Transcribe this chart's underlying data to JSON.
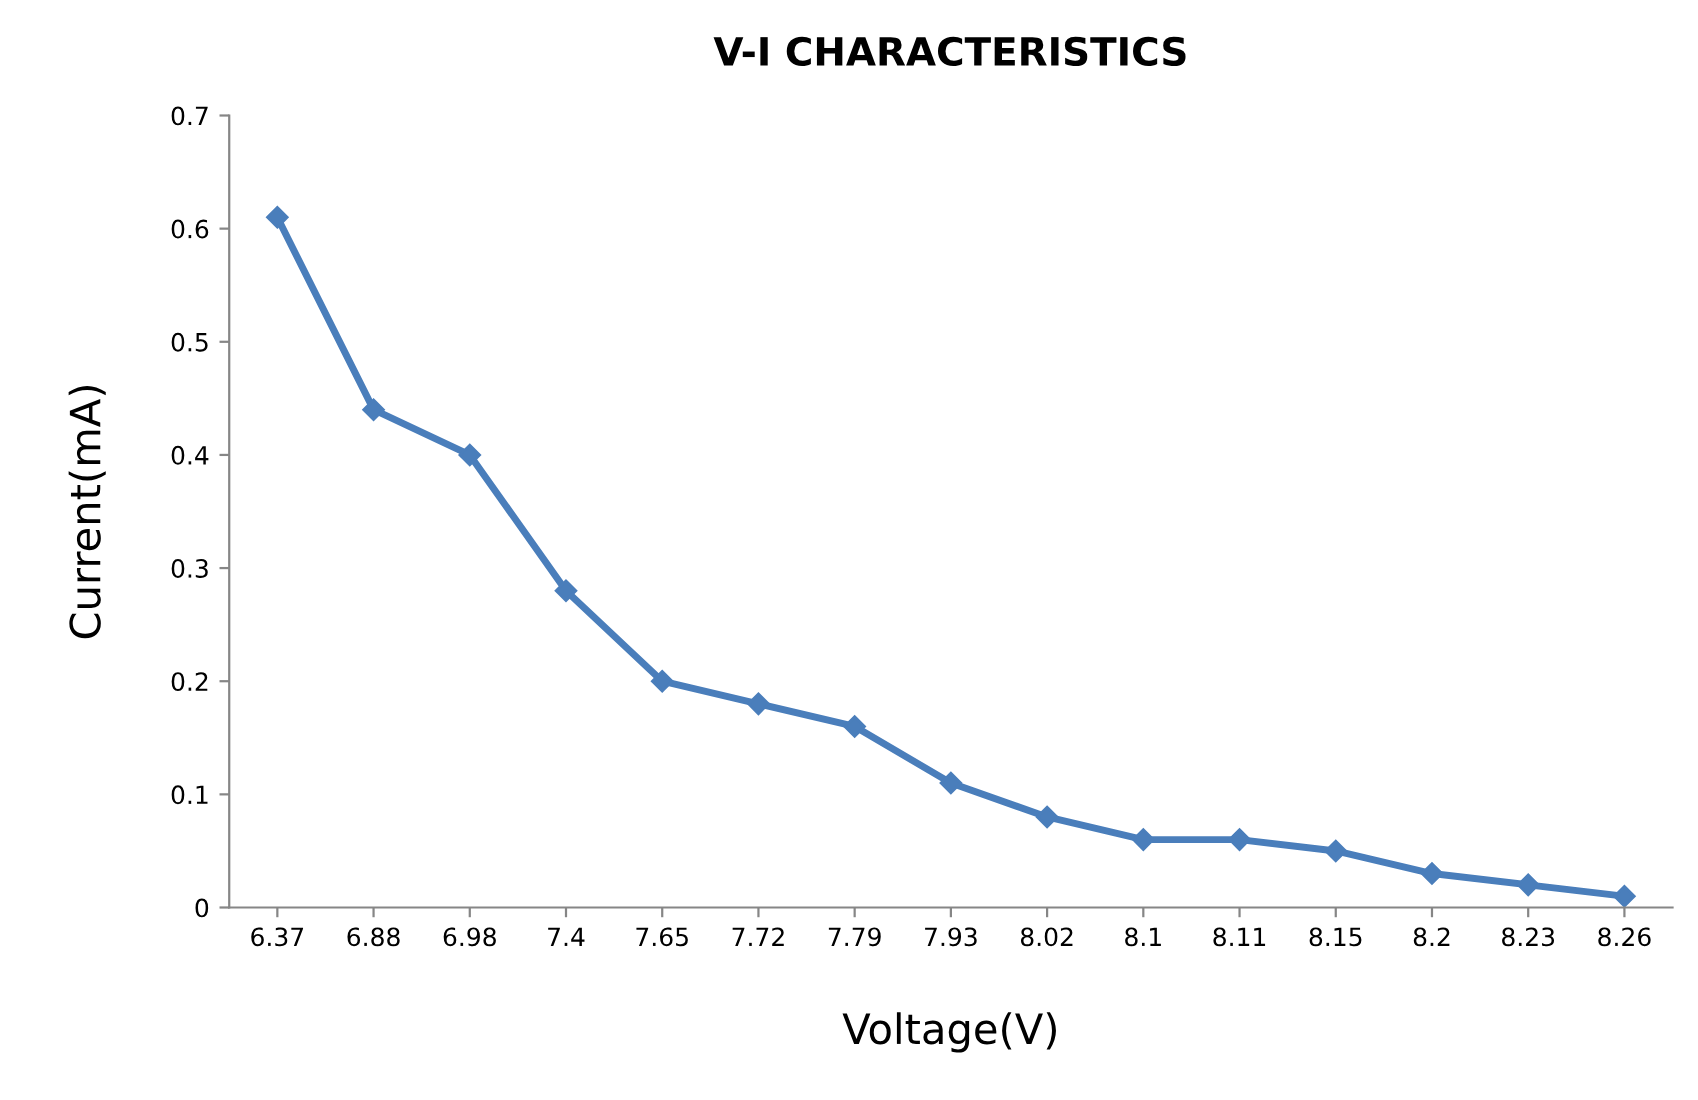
{
  "chart_data": {
    "type": "line",
    "title": "V-I CHARACTERISTICS",
    "xlabel": "Voltage(V)",
    "ylabel": "Current(mA)",
    "categories": [
      "6.37",
      "6.88",
      "6.98",
      "7.4",
      "7.65",
      "7.72",
      "7.79",
      "7.93",
      "8.02",
      "8.1",
      "8.11",
      "8.15",
      "8.2",
      "8.23",
      "8.26"
    ],
    "series": [
      {
        "color": "#4a7ebb",
        "values": [
          0.61,
          0.44,
          0.4,
          0.28,
          0.2,
          0.18,
          0.16,
          0.11,
          0.08,
          0.06,
          0.06,
          0.05,
          0.03,
          0.02,
          0.01
        ]
      }
    ],
    "ylim": [
      0,
      0.7
    ],
    "yticks": [
      0,
      0.1,
      0.2,
      0.3,
      0.4,
      0.5,
      0.6,
      0.7
    ],
    "marker": "diamond",
    "line_style": "solid",
    "grid": false
  }
}
